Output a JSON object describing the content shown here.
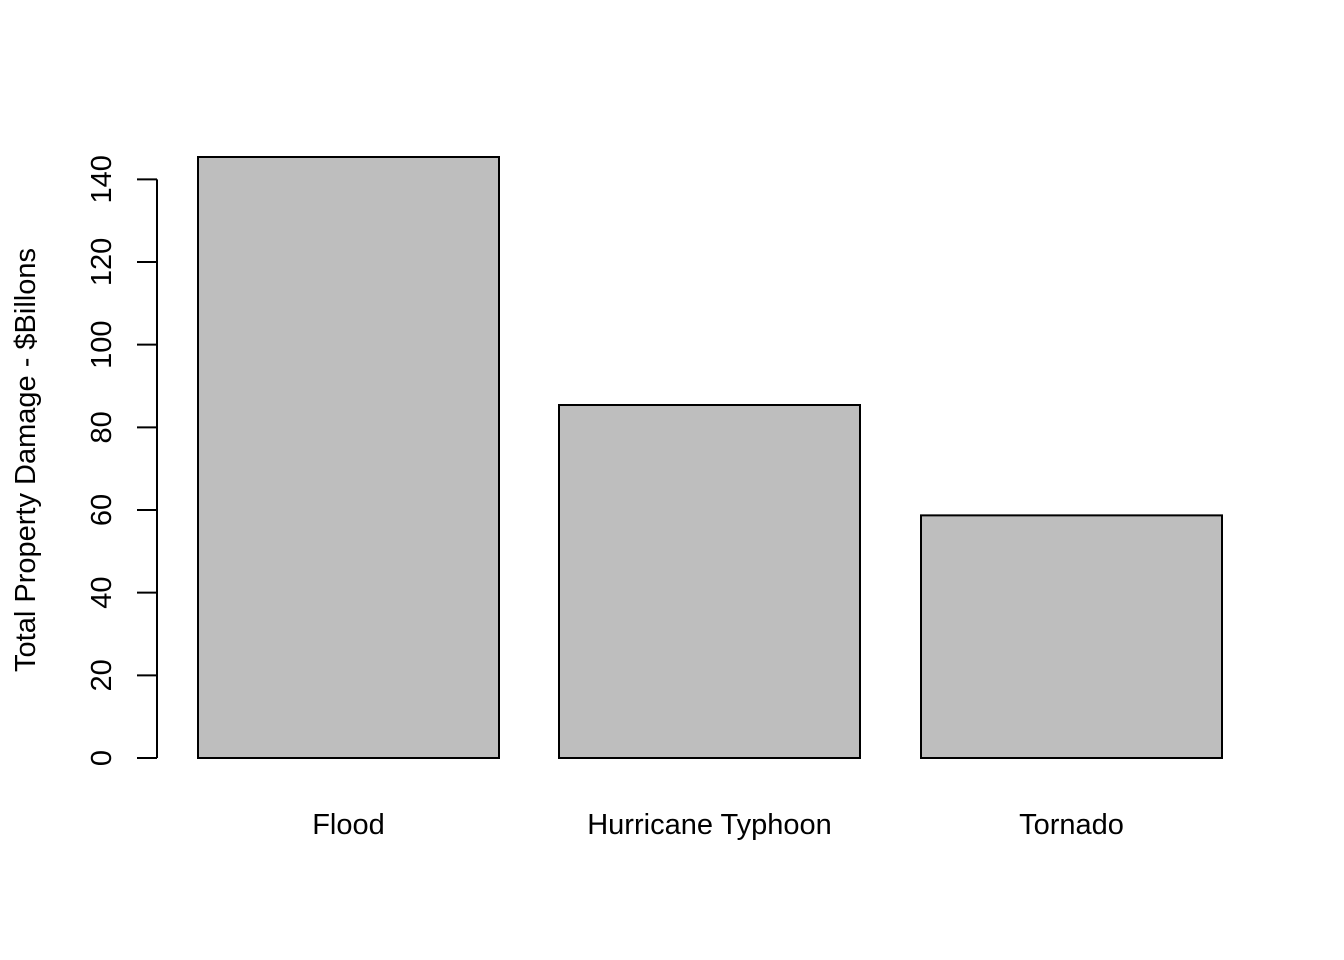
{
  "chart_data": {
    "type": "bar",
    "title": "",
    "xlabel": "",
    "ylabel": "Total Property Damage - $Billons",
    "categories": [
      "Flood",
      "Hurricane Typhoon",
      "Tornado"
    ],
    "values": [
      145.4,
      85.4,
      58.7
    ],
    "ylim": [
      0,
      145.4
    ],
    "y_ticks": [
      0,
      20,
      40,
      60,
      80,
      100,
      120,
      140
    ],
    "bar_fill": "#bebebe",
    "bar_stroke": "#000000",
    "grid": false,
    "legend": "none"
  }
}
